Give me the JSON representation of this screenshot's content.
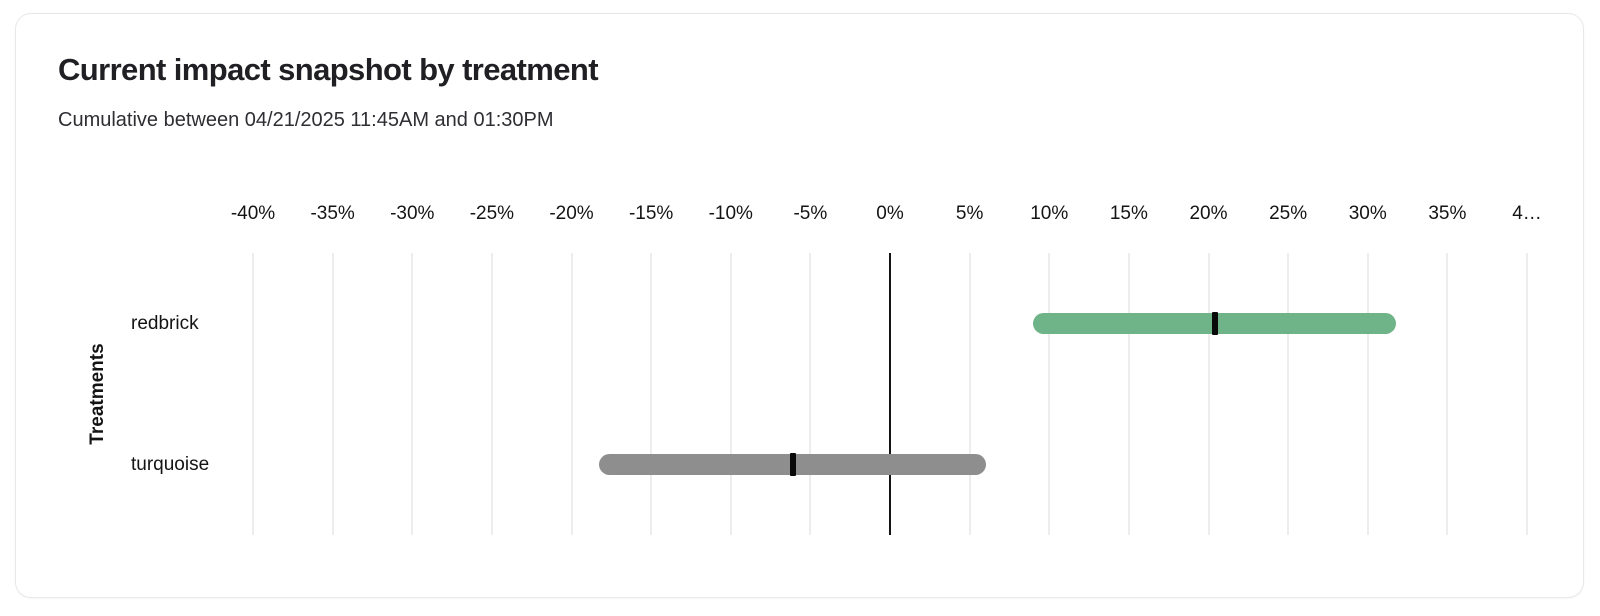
{
  "chart_data": {
    "type": "bar",
    "variant": "horizontal-range-interval",
    "orientation": "horizontal",
    "title": "Current impact snapshot by treatment",
    "subtitle": "Cumulative between 04/21/2025 11:45AM and 01:30PM",
    "ylabel": "Treatments",
    "xlabel": "",
    "xlim": [
      -40,
      40
    ],
    "x_tick_step": 5,
    "grid": true,
    "legend": false,
    "x_ticks": [
      {
        "value": -40,
        "label": "-40%"
      },
      {
        "value": -35,
        "label": "-35%"
      },
      {
        "value": -30,
        "label": "-30%"
      },
      {
        "value": -25,
        "label": "-25%"
      },
      {
        "value": -20,
        "label": "-20%"
      },
      {
        "value": -15,
        "label": "-15%"
      },
      {
        "value": -10,
        "label": "-10%"
      },
      {
        "value": -5,
        "label": "-5%"
      },
      {
        "value": 0,
        "label": "0%"
      },
      {
        "value": 5,
        "label": "5%"
      },
      {
        "value": 10,
        "label": "10%"
      },
      {
        "value": 15,
        "label": "15%"
      },
      {
        "value": 20,
        "label": "20%"
      },
      {
        "value": 25,
        "label": "25%"
      },
      {
        "value": 30,
        "label": "30%"
      },
      {
        "value": 35,
        "label": "35%"
      },
      {
        "value": 40,
        "label": "4…"
      }
    ],
    "categories": [
      "redbrick",
      "turquoise"
    ],
    "bars": [
      {
        "label": "redbrick",
        "range_low_pct": 9.0,
        "range_high_pct": 31.8,
        "point_pct": 20.4,
        "color": "#6FB488"
      },
      {
        "label": "turquoise",
        "range_low_pct": -18.3,
        "range_high_pct": 6.0,
        "point_pct": -6.1,
        "color": "#8E8E8E"
      }
    ],
    "colors": {
      "marker": "#0a0a0a",
      "grid": "#ededed",
      "zero_line": "#141414",
      "positive_bar": "#6FB488",
      "neutral_bar": "#8E8E8E"
    }
  }
}
